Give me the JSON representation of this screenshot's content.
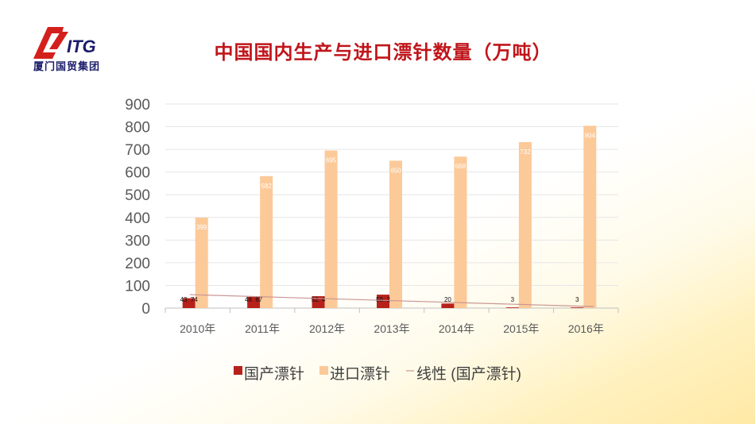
{
  "logo": {
    "mark_text": "ITG",
    "subtitle": "厦门国贸集团"
  },
  "title": "中国国内生产与进口漂针数量（万吨）",
  "colors": {
    "domestic": "#b7211b",
    "import": "#fcc998",
    "trend": "#c99592",
    "title": "#c0161b"
  },
  "chart_data": {
    "type": "bar",
    "title": "中国国内生产与进口漂针数量（万吨）",
    "categories": [
      "2010年",
      "2011年",
      "2012年",
      "2013年",
      "2014年",
      "2015年",
      "2016年"
    ],
    "series": [
      {
        "name": "国产漂针",
        "values": [
          43.74,
          48.87,
          52.4,
          59.2,
          20,
          3,
          3
        ],
        "labels": [
          "43. 74",
          "48. 87",
          "52. 4",
          "59. 2",
          "20",
          "3",
          "3"
        ]
      },
      {
        "name": "进口漂针",
        "values": [
          399,
          582,
          695,
          650,
          668,
          732,
          804
        ],
        "labels": [
          "399",
          "582",
          "695",
          "650",
          "668",
          "732",
          "804"
        ]
      }
    ],
    "trendline": {
      "name": "线性 (国产漂针)",
      "of": "国产漂针",
      "type": "linear"
    },
    "ylim": [
      0,
      900
    ],
    "yticks": [
      "0",
      "100",
      "200",
      "300",
      "400",
      "500",
      "600",
      "700",
      "800",
      "900"
    ],
    "grid": true,
    "legend": "bottom"
  }
}
